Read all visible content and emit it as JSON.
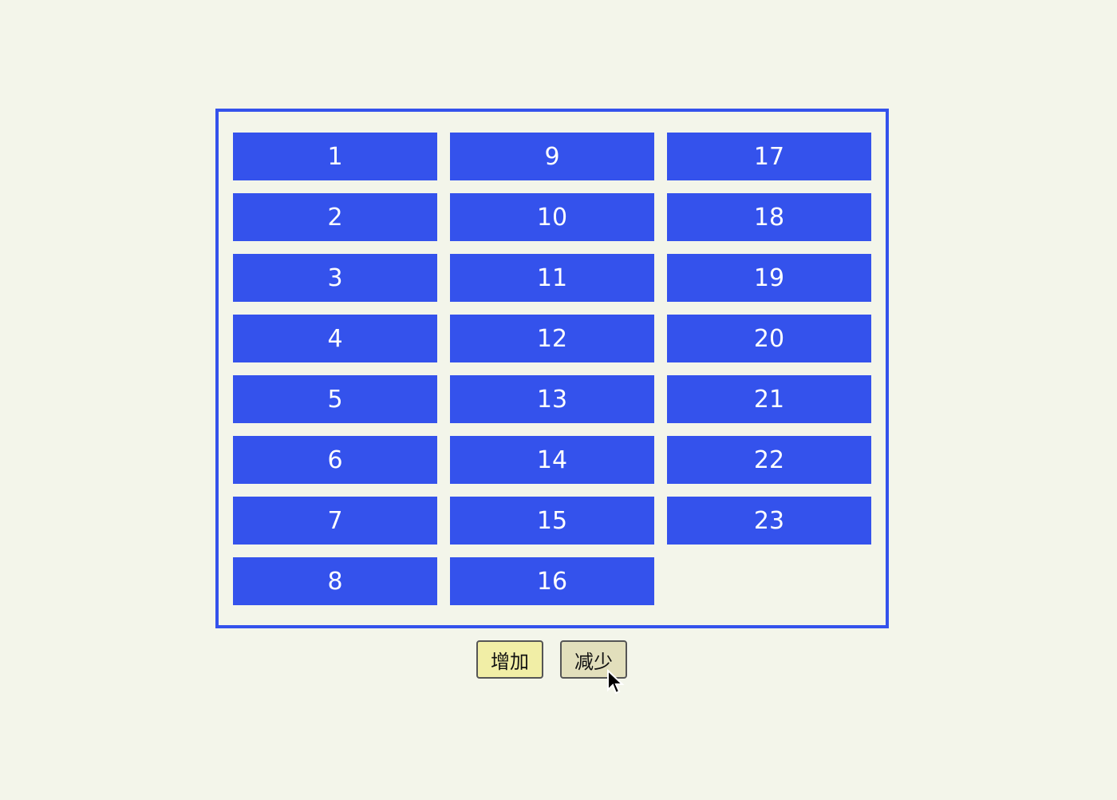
{
  "grid": {
    "items": [
      "1",
      "2",
      "3",
      "4",
      "5",
      "6",
      "7",
      "8",
      "9",
      "10",
      "11",
      "12",
      "13",
      "14",
      "15",
      "16",
      "17",
      "18",
      "19",
      "20",
      "21",
      "22",
      "23"
    ]
  },
  "controls": {
    "increase_label": "增加",
    "decrease_label": "减少"
  },
  "colors": {
    "accent": "#3452ec",
    "button": "#f1eea6",
    "background": "#f3f5ea"
  }
}
